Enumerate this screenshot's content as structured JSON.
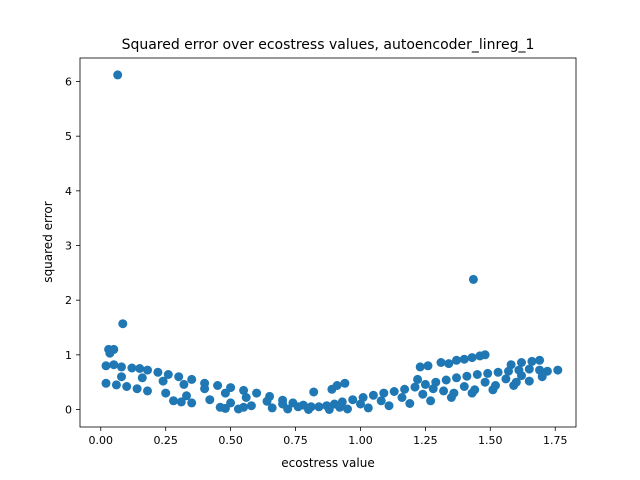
{
  "chart_data": {
    "type": "scatter",
    "title": "Squared error over ecostress values, autoencoder_linreg_1",
    "xlabel": "ecostress value",
    "ylabel": "squared error",
    "xlim": [
      -0.08,
      1.83
    ],
    "ylim": [
      -0.32,
      6.43
    ],
    "xticks": [
      0.0,
      0.25,
      0.5,
      0.75,
      1.0,
      1.25,
      1.5,
      1.75
    ],
    "xtick_labels": [
      "0.00",
      "0.25",
      "0.50",
      "0.75",
      "1.00",
      "1.25",
      "1.50",
      "1.75"
    ],
    "yticks": [
      0,
      1,
      2,
      3,
      4,
      5,
      6
    ],
    "ytick_labels": [
      "0",
      "1",
      "2",
      "3",
      "4",
      "5",
      "6"
    ],
    "grid": false,
    "point_color": "#1f77b4",
    "series": [
      {
        "points": [
          [
            0.065,
            6.12
          ],
          [
            1.435,
            2.38
          ],
          [
            0.085,
            1.57
          ],
          [
            0.03,
            1.1
          ],
          [
            0.05,
            1.1
          ],
          [
            0.035,
            1.03
          ],
          [
            0.02,
            0.8
          ],
          [
            0.05,
            0.82
          ],
          [
            0.08,
            0.78
          ],
          [
            0.12,
            0.76
          ],
          [
            0.15,
            0.75
          ],
          [
            0.18,
            0.72
          ],
          [
            0.22,
            0.68
          ],
          [
            0.26,
            0.64
          ],
          [
            0.3,
            0.6
          ],
          [
            0.35,
            0.55
          ],
          [
            0.4,
            0.48
          ],
          [
            0.45,
            0.44
          ],
          [
            0.5,
            0.4
          ],
          [
            0.55,
            0.35
          ],
          [
            0.6,
            0.3
          ],
          [
            0.65,
            0.24
          ],
          [
            0.7,
            0.17
          ],
          [
            0.74,
            0.12
          ],
          [
            0.78,
            0.08
          ],
          [
            0.81,
            0.05
          ],
          [
            0.84,
            0.05
          ],
          [
            0.87,
            0.07
          ],
          [
            0.9,
            0.1
          ],
          [
            0.93,
            0.14
          ],
          [
            0.97,
            0.18
          ],
          [
            1.01,
            0.22
          ],
          [
            1.05,
            0.26
          ],
          [
            1.09,
            0.3
          ],
          [
            1.13,
            0.33
          ],
          [
            1.17,
            0.37
          ],
          [
            1.21,
            0.41
          ],
          [
            1.25,
            0.46
          ],
          [
            1.29,
            0.5
          ],
          [
            1.33,
            0.54
          ],
          [
            1.37,
            0.58
          ],
          [
            1.41,
            0.61
          ],
          [
            1.45,
            0.64
          ],
          [
            1.49,
            0.66
          ],
          [
            1.53,
            0.68
          ],
          [
            1.57,
            0.7
          ],
          [
            1.61,
            0.72
          ],
          [
            1.65,
            0.74
          ],
          [
            1.69,
            0.72
          ],
          [
            1.72,
            0.7
          ],
          [
            1.76,
            0.72
          ],
          [
            0.02,
            0.48
          ],
          [
            0.06,
            0.45
          ],
          [
            0.1,
            0.42
          ],
          [
            0.14,
            0.38
          ],
          [
            0.18,
            0.34
          ],
          [
            0.25,
            0.3
          ],
          [
            0.33,
            0.25
          ],
          [
            0.42,
            0.18
          ],
          [
            0.5,
            0.12
          ],
          [
            0.58,
            0.07
          ],
          [
            0.66,
            0.03
          ],
          [
            0.72,
            0.01
          ],
          [
            0.8,
            0.0
          ],
          [
            0.88,
            0.0
          ],
          [
            0.95,
            0.01
          ],
          [
            1.03,
            0.03
          ],
          [
            1.11,
            0.07
          ],
          [
            1.19,
            0.11
          ],
          [
            1.27,
            0.16
          ],
          [
            1.35,
            0.22
          ],
          [
            1.43,
            0.3
          ],
          [
            1.51,
            0.36
          ],
          [
            1.59,
            0.44
          ],
          [
            1.65,
            0.52
          ],
          [
            1.7,
            0.6
          ],
          [
            0.08,
            0.6
          ],
          [
            0.16,
            0.58
          ],
          [
            0.24,
            0.52
          ],
          [
            0.32,
            0.46
          ],
          [
            0.4,
            0.38
          ],
          [
            0.48,
            0.3
          ],
          [
            0.56,
            0.22
          ],
          [
            0.64,
            0.15
          ],
          [
            0.7,
            0.1
          ],
          [
            0.76,
            0.05
          ],
          [
            0.92,
            0.04
          ],
          [
            1.0,
            0.1
          ],
          [
            1.08,
            0.16
          ],
          [
            1.16,
            0.22
          ],
          [
            1.24,
            0.28
          ],
          [
            1.32,
            0.34
          ],
          [
            1.4,
            0.42
          ],
          [
            1.48,
            0.5
          ],
          [
            1.56,
            0.56
          ],
          [
            1.62,
            0.62
          ],
          [
            0.28,
            0.16
          ],
          [
            0.31,
            0.14
          ],
          [
            0.35,
            0.12
          ],
          [
            0.46,
            0.04
          ],
          [
            0.48,
            0.02
          ],
          [
            0.53,
            0.01
          ],
          [
            0.55,
            0.04
          ],
          [
            0.82,
            0.32
          ],
          [
            0.89,
            0.37
          ],
          [
            0.91,
            0.44
          ],
          [
            0.94,
            0.48
          ],
          [
            1.23,
            0.78
          ],
          [
            1.26,
            0.8
          ],
          [
            1.31,
            0.86
          ],
          [
            1.34,
            0.84
          ],
          [
            1.37,
            0.9
          ],
          [
            1.4,
            0.92
          ],
          [
            1.43,
            0.95
          ],
          [
            1.46,
            0.98
          ],
          [
            1.48,
            1.0
          ],
          [
            1.58,
            0.82
          ],
          [
            1.62,
            0.86
          ],
          [
            1.66,
            0.88
          ],
          [
            1.69,
            0.9
          ],
          [
            1.22,
            0.55
          ],
          [
            1.28,
            0.38
          ],
          [
            1.36,
            0.3
          ],
          [
            1.44,
            0.36
          ],
          [
            1.52,
            0.44
          ],
          [
            1.6,
            0.5
          ]
        ]
      }
    ]
  }
}
